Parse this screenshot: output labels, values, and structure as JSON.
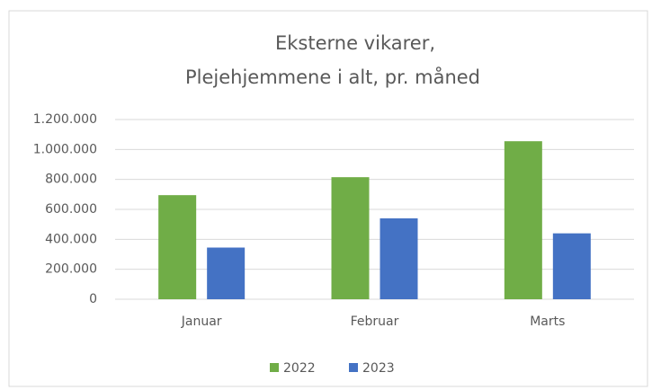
{
  "chart_data": {
    "type": "bar",
    "title": [
      "Eksterne vikarer,",
      "Plejehjemmene i alt, pr. måned"
    ],
    "categories": [
      "Januar",
      "Februar",
      "Marts"
    ],
    "series": [
      {
        "name": "2022",
        "color": "#70ad47",
        "values": [
          695000,
          815000,
          1055000
        ]
      },
      {
        "name": "2023",
        "color": "#4472c4",
        "values": [
          345000,
          540000,
          440000
        ]
      }
    ],
    "ylim": [
      0,
      1200000
    ],
    "yticks": [
      0,
      {
        "value": 200000,
        "label": "200.000"
      },
      {
        "value": 400000,
        "label": "400.000"
      },
      {
        "value": 600000,
        "label": "600.000"
      },
      {
        "value": 800000,
        "label": "800.000"
      },
      {
        "value": 1000000,
        "label": "1.000.000"
      },
      {
        "value": 1200000,
        "label": "1.200.000"
      }
    ],
    "grid": true,
    "legend": "bottom"
  }
}
